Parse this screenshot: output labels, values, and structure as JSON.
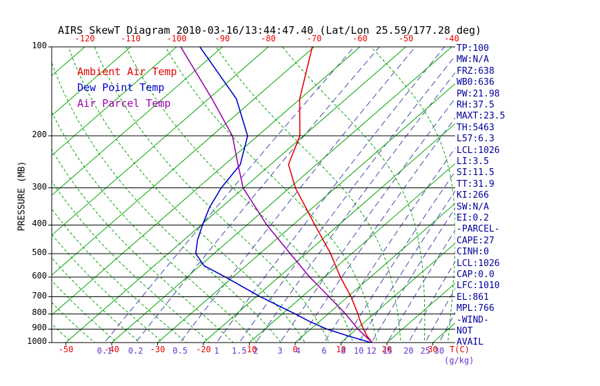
{
  "title": "AIRS SkewT Diagram 2010-03-16/13:44:47.40 (Lat/Lon 25.59/177.28 deg)",
  "colors": {
    "red_label": "#e60000",
    "isotherm": "#00a400",
    "adiabat": "#00a400",
    "mixing_line": "#4444aa",
    "mixing_label": "#6633cc",
    "stats_navy": "#000099",
    "axis_black": "#000000"
  },
  "side_panel": {
    "stats": [
      "TP:100",
      "MW:N/A",
      "FRZ:638",
      "WB0:636",
      "PW:21.98",
      "RH:37.5",
      "MAXT:23.5",
      "TH:5463",
      "L57:6.3",
      "LCL:1026",
      "LI:3.5",
      "SI:11.5",
      "TT:31.9",
      "KI:266",
      "SW:N/A",
      "EI:0.2",
      "-PARCEL-",
      "CAPE:27",
      "CINH:0",
      "LCL:1026",
      "CAP:0.0",
      "LFC:1010",
      "EL:861",
      "MPL:766",
      "-WIND-",
      "NOT",
      "AVAIL"
    ]
  },
  "chart_data": {
    "type": "line",
    "subtype": "skew-t-log-p",
    "title": "AIRS SkewT Diagram 2010-03-16/13:44:47.40 (Lat/Lon 25.59/177.28 deg)",
    "x_axis": {
      "label": "T(C)",
      "top_ticks": [
        -120,
        -110,
        -100,
        -90,
        -80,
        -70,
        -60,
        -50,
        -40
      ],
      "bottom_ticks": [
        -50,
        -40,
        -30,
        -20,
        -10,
        0,
        10,
        20,
        30
      ]
    },
    "y_axis": {
      "label": "PRESSURE (MB)",
      "scale": "log",
      "range": [
        100,
        1050
      ],
      "ticks": [
        100,
        200,
        300,
        400,
        500,
        600,
        700,
        800,
        900,
        1000
      ]
    },
    "mixing_ratio_axis": {
      "label": "(g/kg)",
      "ticks": [
        0.1,
        0.2,
        0.5,
        1,
        1.5,
        2,
        3,
        4,
        6,
        8,
        10,
        12,
        15,
        20,
        25,
        30
      ]
    },
    "isotherms_deg_c": {
      "min": -130,
      "max": 40,
      "step": 10
    },
    "moist_adiabats_start_c": {
      "min": -60,
      "max": 45,
      "step": 5
    },
    "series": [
      {
        "name": "Ambient Air Temp",
        "color": "#e60000",
        "points": [
          [
            1010,
            17.5
          ],
          [
            1000,
            16.8
          ],
          [
            950,
            14.0
          ],
          [
            900,
            11.5
          ],
          [
            850,
            9.0
          ],
          [
            800,
            6.5
          ],
          [
            700,
            0.7
          ],
          [
            600,
            -6.6
          ],
          [
            500,
            -14.6
          ],
          [
            400,
            -25.2
          ],
          [
            300,
            -38.7
          ],
          [
            250,
            -46.1
          ],
          [
            200,
            -50.8
          ],
          [
            150,
            -60.1
          ],
          [
            100,
            -70.4
          ]
        ]
      },
      {
        "name": "Dew Point Temp",
        "color": "#0000cc",
        "points": [
          [
            1010,
            17.0
          ],
          [
            1000,
            16.5
          ],
          [
            950,
            9.9
          ],
          [
            900,
            3.5
          ],
          [
            850,
            -2.0
          ],
          [
            800,
            -7.2
          ],
          [
            700,
            -19.1
          ],
          [
            600,
            -31.7
          ],
          [
            550,
            -39.1
          ],
          [
            500,
            -44.0
          ],
          [
            450,
            -47.0
          ],
          [
            400,
            -49.7
          ],
          [
            350,
            -52.5
          ],
          [
            300,
            -54.9
          ],
          [
            250,
            -56.6
          ],
          [
            200,
            -62.2
          ],
          [
            150,
            -73.9
          ],
          [
            100,
            -94.9
          ]
        ]
      },
      {
        "name": "Air Parcel Temp",
        "color": "#9900aa",
        "points": [
          [
            1010,
            17.3
          ],
          [
            1000,
            16.8
          ],
          [
            900,
            10.3
          ],
          [
            800,
            3.8
          ],
          [
            700,
            -4.1
          ],
          [
            600,
            -13.3
          ],
          [
            500,
            -23.4
          ],
          [
            400,
            -35.7
          ],
          [
            300,
            -50.1
          ],
          [
            250,
            -57.1
          ],
          [
            200,
            -65.5
          ],
          [
            150,
            -79.2
          ],
          [
            100,
            -99.1
          ]
        ]
      }
    ]
  }
}
